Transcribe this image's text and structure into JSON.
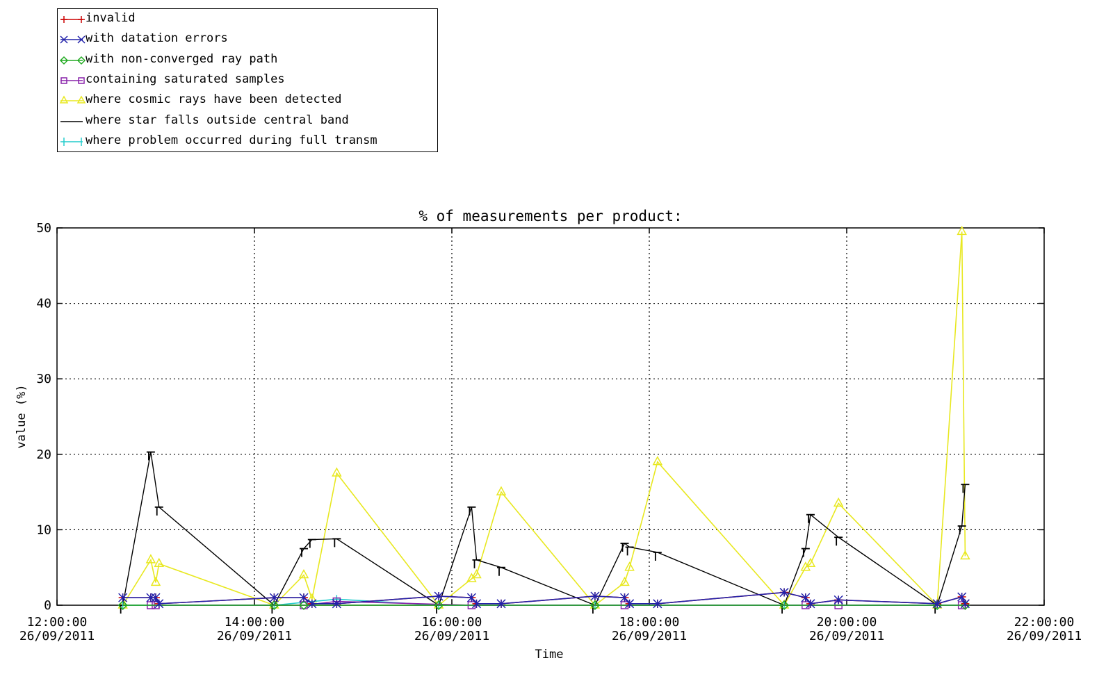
{
  "chart_data": {
    "type": "line",
    "title": "% of measurements per product:",
    "xlabel": "Time",
    "ylabel": "value (%)",
    "ylim": [
      0,
      50
    ],
    "xlim": [
      "26/09/2011 12:00:00",
      "26/09/2011 22:00:00"
    ],
    "yticks": [
      "0",
      "10",
      "20",
      "30",
      "40",
      "50"
    ],
    "xticks": [
      {
        "time": "12:00:00",
        "date": "26/09/2011"
      },
      {
        "time": "14:00:00",
        "date": "26/09/2011"
      },
      {
        "time": "16:00:00",
        "date": "26/09/2011"
      },
      {
        "time": "18:00:00",
        "date": "26/09/2011"
      },
      {
        "time": "20:00:00",
        "date": "26/09/2011"
      },
      {
        "time": "22:00:00",
        "date": "26/09/2011"
      }
    ],
    "grid": true,
    "legend_position": "top-left",
    "series": [
      {
        "name": "invalid",
        "color": "#cc0000",
        "marker": "plus",
        "x": [
          "12:40",
          "12:57",
          "13:00",
          "13:02",
          "14:12",
          "14:30",
          "14:35",
          "14:50",
          "15:52",
          "16:12",
          "16:15",
          "16:30",
          "17:27",
          "17:45",
          "17:48",
          "18:05",
          "19:22",
          "19:35",
          "19:38",
          "19:55",
          "20:55",
          "21:10",
          "21:12"
        ],
        "values": [
          1.0,
          1.0,
          1.0,
          0.2,
          1.0,
          1.0,
          0.2,
          0.2,
          1.2,
          1.0,
          0.2,
          0.2,
          1.2,
          1.0,
          0.2,
          0.2,
          1.7,
          1.0,
          0.2,
          0.7,
          0.2,
          1.1,
          0.2
        ]
      },
      {
        "name": "with datation errors",
        "color": "#2222aa",
        "marker": "x",
        "x": [
          "12:40",
          "12:57",
          "13:00",
          "13:02",
          "14:12",
          "14:30",
          "14:35",
          "14:50",
          "15:52",
          "16:12",
          "16:15",
          "16:30",
          "17:27",
          "17:45",
          "17:48",
          "18:05",
          "19:22",
          "19:35",
          "19:38",
          "19:55",
          "20:55",
          "21:10",
          "21:12"
        ],
        "values": [
          1.0,
          1.0,
          1.0,
          0.2,
          1.0,
          1.0,
          0.2,
          0.2,
          1.2,
          1.0,
          0.2,
          0.2,
          1.2,
          1.0,
          0.2,
          0.2,
          1.7,
          1.0,
          0.2,
          0.7,
          0.2,
          1.1,
          0.2
        ]
      },
      {
        "name": "with non-converged ray path",
        "color": "#22aa22",
        "marker": "diamond",
        "x": [
          "12:40",
          "14:12",
          "14:30",
          "15:52",
          "17:27",
          "19:22",
          "20:55",
          "21:12"
        ],
        "values": [
          0,
          0,
          0,
          0,
          0,
          0,
          0,
          0
        ]
      },
      {
        "name": "containing saturated samples",
        "color": "#8822aa",
        "marker": "square",
        "x": [
          "12:57",
          "13:00",
          "14:30",
          "14:50",
          "16:12",
          "17:45",
          "19:35",
          "19:55",
          "21:10"
        ],
        "values": [
          0,
          0,
          0,
          0.5,
          0,
          0,
          0,
          0,
          0
        ]
      },
      {
        "name": "where cosmic rays have been detected",
        "color": "#e8e820",
        "marker": "triangle",
        "x": [
          "12:40",
          "12:57",
          "13:00",
          "13:02",
          "14:12",
          "14:30",
          "14:35",
          "14:50",
          "15:52",
          "16:12",
          "16:15",
          "16:30",
          "17:27",
          "17:45",
          "17:48",
          "18:05",
          "19:22",
          "19:35",
          "19:38",
          "19:55",
          "20:55",
          "21:10",
          "21:12"
        ],
        "values": [
          0,
          6,
          3,
          5.5,
          0,
          4,
          0.8,
          17.5,
          0,
          3.5,
          4,
          15,
          0,
          3,
          5,
          19,
          0,
          5,
          5.5,
          13.5,
          0,
          49.5,
          6.5
        ]
      },
      {
        "name": "where star falls outside central band",
        "color": "#000000",
        "marker": "cap",
        "x": [
          "12:40",
          "12:57",
          "13:02",
          "14:12",
          "14:30",
          "14:35",
          "14:50",
          "15:52",
          "16:12",
          "16:15",
          "16:30",
          "17:27",
          "17:45",
          "17:48",
          "18:05",
          "19:22",
          "19:35",
          "19:38",
          "19:55",
          "20:55",
          "21:10",
          "21:12"
        ],
        "values": [
          0,
          20.3,
          13,
          0,
          7.5,
          8.7,
          8.8,
          0,
          13,
          6,
          5,
          0,
          8.2,
          7.7,
          7,
          0,
          7.5,
          12,
          9,
          0,
          10.5,
          16
        ],
        "labels": []
      },
      {
        "name": "where problem occurred during full transm",
        "color": "#22cccc",
        "marker": "bar",
        "x": [
          "12:40",
          "14:12",
          "14:50",
          "15:52",
          "17:27",
          "19:22",
          "20:55",
          "21:12"
        ],
        "values": [
          0,
          0,
          0.8,
          0,
          0,
          0,
          0,
          0
        ]
      }
    ]
  }
}
